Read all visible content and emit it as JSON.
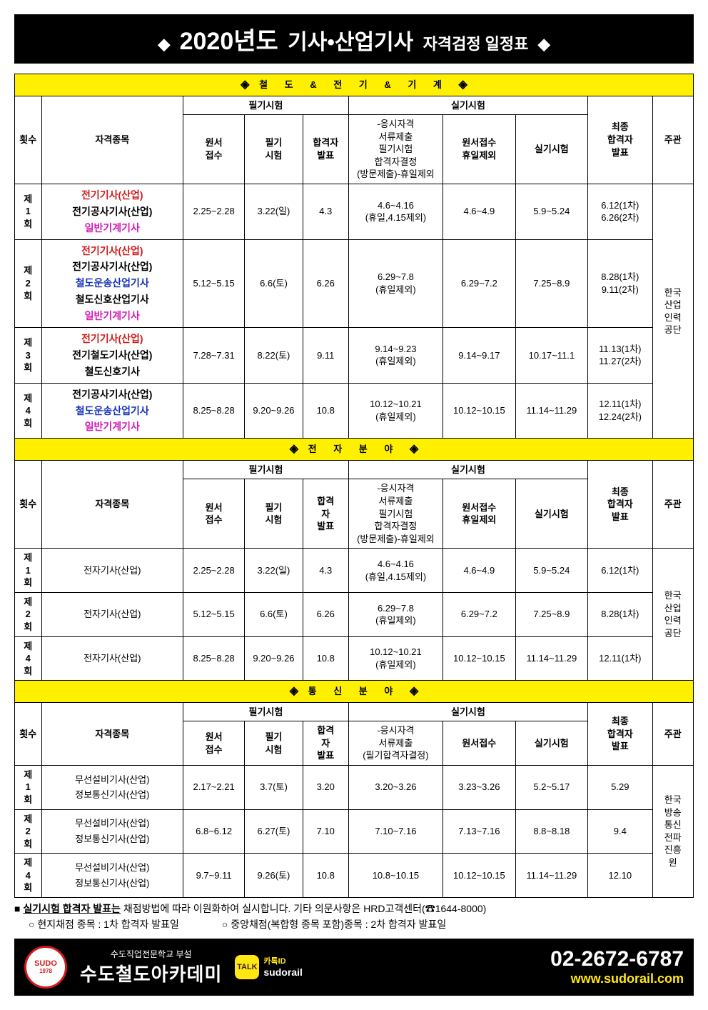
{
  "colors": {
    "yellow": "#fff000",
    "red": "#d11a1a",
    "blue": "#1532b8",
    "magenta": "#d11ab6",
    "black": "#000000",
    "white": "#ffffff",
    "kakaoYellow": "#ffe812"
  },
  "title": {
    "diamondL": "◆",
    "year": "2020년도",
    "mid": "기사•산업기사",
    "tail": "자격검정 일정표",
    "diamondR": "◆"
  },
  "sectionA": {
    "head": "철 도  &  전 기  &  기 계",
    "diamL": "◈",
    "diamR": "◈",
    "colHeaders": {
      "round": "횟수",
      "subject": "자격종목",
      "writtenGroup": "필기시험",
      "practicalGroup": "실기시험",
      "wApply": "원서\n접수",
      "wExam": "필기\n시험",
      "wPass": "합격자\n발표",
      "pSubmit": "-응시자격\n서류제출\n필기시험\n합격자결정\n(방문제출)-휴일제외",
      "pApply": "원서접수\n휴일제외",
      "pExam": "실기시험",
      "finalPass": "최종\n합격자\n발표",
      "org": "주관"
    },
    "org": "한국\n산업\n인력\n공단",
    "rows": [
      {
        "round": "제\n1\n회",
        "subjects": [
          {
            "t": "전기기사(산업)",
            "c": "c-red"
          },
          {
            "t": "전기공사기사(산업)",
            "c": "c-black"
          },
          {
            "t": "일반기계기사",
            "c": "c-mag"
          }
        ],
        "wApply": "2.25~2.28",
        "wExam": "3.22(일)",
        "wPass": "4.3",
        "pSubmit": "4.6~4.16\n(휴일,4.15제외)",
        "pApply": "4.6~4.9",
        "pExam": "5.9~5.24",
        "finalPass": "6.12(1차)\n6.26(2차)"
      },
      {
        "round": "제\n2\n회",
        "subjects": [
          {
            "t": "전기기사(산업)",
            "c": "c-red"
          },
          {
            "t": "전기공사기사(산업)",
            "c": "c-black"
          },
          {
            "t": "철도운송산업기사",
            "c": "c-blue"
          },
          {
            "t": "철도신호산업기사",
            "c": "c-black"
          },
          {
            "t": "일반기계기사",
            "c": "c-mag"
          }
        ],
        "wApply": "5.12~5.15",
        "wExam": "6.6(토)",
        "wPass": "6.26",
        "pSubmit": "6.29~7.8\n(휴일제외)",
        "pApply": "6.29~7.2",
        "pExam": "7.25~8.9",
        "finalPass": "8.28(1차)\n9.11(2차)"
      },
      {
        "round": "제\n3\n회",
        "subjects": [
          {
            "t": "전기기사(산업)",
            "c": "c-red"
          },
          {
            "t": "전기철도기사(산업)",
            "c": "c-black"
          },
          {
            "t": "철도신호기사",
            "c": "c-black"
          }
        ],
        "wApply": "7.28~7.31",
        "wExam": "8.22(토)",
        "wPass": "9.11",
        "pSubmit": "9.14~9.23\n(휴일제외)",
        "pApply": "9.14~9.17",
        "pExam": "10.17~11.1",
        "finalPass": "11.13(1차)\n11.27(2차)"
      },
      {
        "round": "제\n4\n회",
        "subjects": [
          {
            "t": "전기공사기사(산업)",
            "c": "c-black"
          },
          {
            "t": "철도운송산업기사",
            "c": "c-blue"
          },
          {
            "t": "일반기계기사",
            "c": "c-mag"
          }
        ],
        "wApply": "8.25~8.28",
        "wExam": "9.20~9.26",
        "wPass": "10.8",
        "pSubmit": "10.12~10.21\n(휴일제외)",
        "pApply": "10.12~10.15",
        "pExam": "11.14~11.29",
        "finalPass": "12.11(1차)\n12.24(2차)"
      }
    ]
  },
  "sectionB": {
    "head": "전 자 분 야",
    "diamL": "◈",
    "diamR": "◈",
    "colHeaders": {
      "round": "횟수",
      "subject": "자격종목",
      "writtenGroup": "필기시험",
      "practicalGroup": "실기시험",
      "wApply": "원서\n접수",
      "wExam": "필기\n시험",
      "wPass": "합격\n자\n발표",
      "pSubmit": "-응시자격\n서류제출\n필기시험\n합격자결정\n(방문제출)-휴일제외",
      "pApply": "원서접수\n휴일제외",
      "pExam": "실기시험",
      "finalPass": "최종\n합격자\n발표",
      "org": "주관"
    },
    "org": "한국\n산업\n인력\n공단",
    "rows": [
      {
        "round": "제\n1\n회",
        "subject": "전자기사(산업)",
        "wApply": "2.25~2.28",
        "wExam": "3.22(일)",
        "wPass": "4.3",
        "pSubmit": "4.6~4.16\n(휴일,4.15제외)",
        "pApply": "4.6~4.9",
        "pExam": "5.9~5.24",
        "finalPass": "6.12(1차)"
      },
      {
        "round": "제\n2\n회",
        "subject": "전자기사(산업)",
        "wApply": "5.12~5.15",
        "wExam": "6.6(토)",
        "wPass": "6.26",
        "pSubmit": "6.29~7.8\n(휴일제외)",
        "pApply": "6.29~7.2",
        "pExam": "7.25~8.9",
        "finalPass": "8.28(1차)"
      },
      {
        "round": "제\n4\n회",
        "subject": "전자기사(산업)",
        "wApply": "8.25~8.28",
        "wExam": "9.20~9.26",
        "wPass": "10.8",
        "pSubmit": "10.12~10.21\n(휴일제외)",
        "pApply": "10.12~10.15",
        "pExam": "11.14~11.29",
        "finalPass": "12.11(1차)"
      }
    ]
  },
  "sectionC": {
    "head": "통 신 분 야",
    "diamL": "◈",
    "diamR": "◈",
    "colHeaders": {
      "round": "횟수",
      "subject": "자격종목",
      "writtenGroup": "필기시험",
      "practicalGroup": "실기시험",
      "wApply": "원서\n접수",
      "wExam": "필기\n시험",
      "wPass": "합격\n자\n발표",
      "pSubmit": "-응시자격\n서류제출\n(필기합격자결정)",
      "pApply": "원서접수",
      "pExam": "실기시험",
      "finalPass": "최종\n합격자\n발표",
      "org": "주관"
    },
    "org": "한국\n방송\n통신\n전파\n진흥\n원",
    "rows": [
      {
        "round": "제\n1\n회",
        "subjects": [
          "무선설비기사(산업)",
          "정보통신기사(산업)"
        ],
        "wApply": "2.17~2.21",
        "wExam": "3.7(토)",
        "wPass": "3.20",
        "pSubmit": "3.20~3.26",
        "pApply": "3.23~3.26",
        "pExam": "5.2~5.17",
        "finalPass": "5.29"
      },
      {
        "round": "제\n2\n회",
        "subjects": [
          "무선설비기사(산업)",
          "정보통신기사(산업)"
        ],
        "wApply": "6.8~6.12",
        "wExam": "6.27(토)",
        "wPass": "7.10",
        "pSubmit": "7.10~7.16",
        "pApply": "7.13~7.16",
        "pExam": "8.8~8.18",
        "finalPass": "9.4"
      },
      {
        "round": "제\n4\n회",
        "subjects": [
          "무선설비기사(산업)",
          "정보통신기사(산업)"
        ],
        "wApply": "9.7~9.11",
        "wExam": "9.26(토)",
        "wPass": "10.8",
        "pSubmit": "10.8~10.15",
        "pApply": "10.12~10.15",
        "pExam": "11.14~11.29",
        "finalPass": "12.10"
      }
    ]
  },
  "notes": {
    "line1a": "■ ",
    "line1u": "실기시험 합격자 발표는",
    "line1b": " 채점방법에 따라 이원화하여 실시합니다. 기타 의문사항은 HRD고객센터(☎1644-8000)",
    "line2a": "○ 현지채점 종목 : 1차 합격자 발표일",
    "line2b": "○ 중앙채점(복합형 종목 포함)종목 : 2차 합격자 발표일"
  },
  "footer": {
    "logoTop": "SUDO",
    "logoBot": "1978",
    "sup": "수도직업전문학교 부설",
    "main": "수도철도아카데미",
    "kakaoBadge": "TALK",
    "kakaoLabel": "카톡ID",
    "kakaoId": "sudorail",
    "tel": "02-2672-6787",
    "url": "www.sudorail.com"
  }
}
